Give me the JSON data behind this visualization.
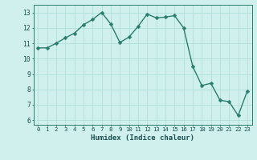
{
  "xlabel": "Humidex (Indice chaleur)",
  "ylabel": "",
  "x_values": [
    0,
    1,
    2,
    3,
    4,
    5,
    6,
    7,
    8,
    9,
    10,
    11,
    12,
    13,
    14,
    15,
    16,
    17,
    18,
    19,
    20,
    21,
    22,
    23
  ],
  "y_values": [
    10.7,
    10.7,
    11.0,
    11.35,
    11.65,
    12.2,
    12.55,
    13.0,
    12.25,
    11.05,
    11.4,
    12.1,
    12.9,
    12.65,
    12.7,
    12.8,
    12.0,
    9.5,
    8.25,
    8.4,
    7.3,
    7.2,
    6.3,
    7.9
  ],
  "line_color": "#2a7d6e",
  "marker_color": "#2a7d6e",
  "bg_color": "#cff0ec",
  "grid_color": "#aaddd8",
  "axis_color": "#2a7d6e",
  "tick_label_color": "#1a5050",
  "xlabel_color": "#1a5050",
  "ylim": [
    5.7,
    13.5
  ],
  "xlim": [
    -0.5,
    23.5
  ],
  "yticks": [
    6,
    7,
    8,
    9,
    10,
    11,
    12,
    13
  ],
  "xticks": [
    0,
    1,
    2,
    3,
    4,
    5,
    6,
    7,
    8,
    9,
    10,
    11,
    12,
    13,
    14,
    15,
    16,
    17,
    18,
    19,
    20,
    21,
    22,
    23
  ],
  "xtick_labels": [
    "0",
    "1",
    "2",
    "3",
    "4",
    "5",
    "6",
    "7",
    "8",
    "9",
    "10",
    "11",
    "12",
    "13",
    "14",
    "15",
    "16",
    "17",
    "18",
    "19",
    "20",
    "21",
    "22",
    "23"
  ],
  "marker_size": 2.5,
  "line_width": 1.0
}
